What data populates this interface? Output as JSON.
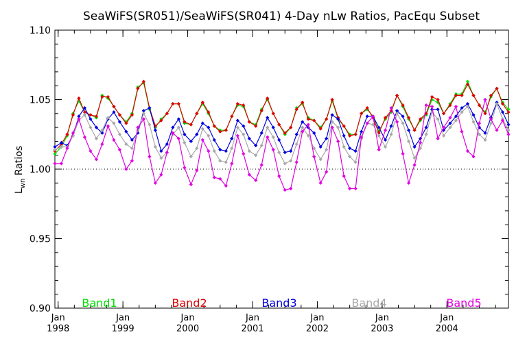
{
  "chart_data": {
    "type": "line",
    "title": "SeaWiFS(SR051)/SeaWiFS(SR041) 4-Day nLw Ratios, PacEqu Subset",
    "ylabel": "Lwn Ratios",
    "ylabel_main": "L",
    "ylabel_sub": "wn",
    "ylabel_tail": " Ratios",
    "xlabel": "",
    "xlim": [
      1997.95,
      2004.95
    ],
    "ylim": [
      0.9,
      1.1
    ],
    "y_ticks": [
      0.9,
      0.95,
      1.0,
      1.05,
      1.1
    ],
    "y_tick_labels": [
      "0.90",
      "0.95",
      "1.00",
      "1.05",
      "1.10"
    ],
    "x_ticks": [
      1998,
      1999,
      2000,
      2001,
      2002,
      2003,
      2004
    ],
    "x_tick_month": "Jan",
    "x_tick_years": [
      "1998",
      "1999",
      "2000",
      "2001",
      "2002",
      "2003",
      "2004"
    ],
    "reference_line": 1.0,
    "grid": false,
    "legend_placement": "bottom",
    "x": [
      1997.95,
      1998.05,
      1998.14,
      1998.23,
      1998.32,
      1998.41,
      1998.5,
      1998.59,
      1998.68,
      1998.77,
      1998.86,
      1998.95,
      1999.05,
      1999.14,
      1999.23,
      1999.32,
      1999.41,
      1999.5,
      1999.59,
      1999.68,
      1999.77,
      1999.86,
      1999.95,
      2000.05,
      2000.14,
      2000.23,
      2000.32,
      2000.41,
      2000.5,
      2000.59,
      2000.68,
      2000.77,
      2000.86,
      2000.95,
      2001.05,
      2001.14,
      2001.23,
      2001.32,
      2001.41,
      2001.5,
      2001.59,
      2001.68,
      2001.77,
      2001.86,
      2001.95,
      2002.05,
      2002.14,
      2002.23,
      2002.32,
      2002.41,
      2002.5,
      2002.59,
      2002.68,
      2002.77,
      2002.86,
      2002.95,
      2003.05,
      2003.14,
      2003.23,
      2003.32,
      2003.41,
      2003.5,
      2003.59,
      2003.68,
      2003.77,
      2003.86,
      2003.95,
      2004.05,
      2004.14,
      2004.23,
      2004.32,
      2004.41,
      2004.5,
      2004.59,
      2004.68,
      2004.77,
      2004.86,
      2004.95
    ],
    "series": [
      {
        "name": "Band1",
        "color": "#00e000",
        "values": [
          1.011,
          1.016,
          1.024,
          1.04,
          1.049,
          1.041,
          1.039,
          1.037,
          1.053,
          1.051,
          1.045,
          1.039,
          1.034,
          1.04,
          1.059,
          1.062,
          1.043,
          1.03,
          1.036,
          1.04,
          1.047,
          1.047,
          1.033,
          1.032,
          1.04,
          1.047,
          1.04,
          1.031,
          1.028,
          1.028,
          1.038,
          1.046,
          1.045,
          1.034,
          1.032,
          1.043,
          1.05,
          1.04,
          1.032,
          1.025,
          1.03,
          1.044,
          1.047,
          1.037,
          1.035,
          1.03,
          1.036,
          1.049,
          1.036,
          1.031,
          1.025,
          1.025,
          1.04,
          1.043,
          1.038,
          1.027,
          1.036,
          1.041,
          1.053,
          1.045,
          1.036,
          1.028,
          1.035,
          1.039,
          1.05,
          1.048,
          1.04,
          1.047,
          1.054,
          1.054,
          1.063,
          1.053,
          1.046,
          1.041,
          1.052,
          1.058,
          1.048,
          1.043
        ]
      },
      {
        "name": "Band2",
        "color": "#e00000",
        "values": [
          1.013,
          1.018,
          1.025,
          1.039,
          1.051,
          1.041,
          1.039,
          1.038,
          1.052,
          1.052,
          1.045,
          1.039,
          1.033,
          1.039,
          1.058,
          1.063,
          1.044,
          1.031,
          1.035,
          1.04,
          1.047,
          1.047,
          1.034,
          1.032,
          1.04,
          1.048,
          1.041,
          1.031,
          1.027,
          1.028,
          1.038,
          1.047,
          1.046,
          1.034,
          1.031,
          1.042,
          1.051,
          1.04,
          1.032,
          1.026,
          1.03,
          1.043,
          1.048,
          1.036,
          1.035,
          1.029,
          1.036,
          1.05,
          1.037,
          1.031,
          1.024,
          1.025,
          1.04,
          1.044,
          1.037,
          1.026,
          1.037,
          1.042,
          1.053,
          1.046,
          1.037,
          1.028,
          1.036,
          1.04,
          1.052,
          1.05,
          1.04,
          1.046,
          1.053,
          1.053,
          1.061,
          1.053,
          1.046,
          1.04,
          1.053,
          1.058,
          1.047,
          1.041
        ]
      },
      {
        "name": "Band3",
        "color": "#0000e0",
        "values": [
          1.016,
          1.019,
          1.017,
          1.024,
          1.038,
          1.044,
          1.036,
          1.03,
          1.026,
          1.036,
          1.041,
          1.034,
          1.027,
          1.021,
          1.026,
          1.042,
          1.044,
          1.028,
          1.013,
          1.018,
          1.03,
          1.036,
          1.025,
          1.02,
          1.025,
          1.033,
          1.03,
          1.021,
          1.014,
          1.013,
          1.022,
          1.035,
          1.031,
          1.022,
          1.017,
          1.026,
          1.037,
          1.03,
          1.021,
          1.012,
          1.013,
          1.025,
          1.034,
          1.03,
          1.026,
          1.016,
          1.022,
          1.039,
          1.036,
          1.024,
          1.015,
          1.013,
          1.027,
          1.038,
          1.038,
          1.03,
          1.021,
          1.031,
          1.042,
          1.038,
          1.028,
          1.016,
          1.022,
          1.03,
          1.043,
          1.043,
          1.028,
          1.033,
          1.038,
          1.044,
          1.047,
          1.039,
          1.03,
          1.026,
          1.037,
          1.048,
          1.041,
          1.032
        ]
      },
      {
        "name": "Band4",
        "color": "#a8a8a8",
        "values": [
          1.014,
          1.016,
          1.016,
          1.024,
          1.035,
          1.039,
          1.03,
          1.022,
          1.028,
          1.037,
          1.033,
          1.025,
          1.018,
          1.015,
          1.028,
          1.04,
          1.032,
          1.016,
          1.008,
          1.012,
          1.025,
          1.03,
          1.019,
          1.009,
          1.015,
          1.029,
          1.024,
          1.013,
          1.006,
          1.005,
          1.015,
          1.03,
          1.025,
          1.013,
          1.01,
          1.017,
          1.03,
          1.023,
          1.012,
          1.004,
          1.006,
          1.018,
          1.03,
          1.024,
          1.015,
          1.007,
          1.014,
          1.034,
          1.03,
          1.016,
          1.009,
          1.005,
          1.022,
          1.033,
          1.032,
          1.024,
          1.016,
          1.025,
          1.04,
          1.033,
          1.02,
          1.008,
          1.015,
          1.025,
          1.041,
          1.036,
          1.024,
          1.03,
          1.035,
          1.041,
          1.045,
          1.034,
          1.025,
          1.021,
          1.033,
          1.047,
          1.036,
          1.028
        ]
      },
      {
        "name": "Band5",
        "color": "#e000e0",
        "values": [
          1.004,
          1.004,
          1.015,
          1.026,
          1.036,
          1.023,
          1.013,
          1.007,
          1.018,
          1.031,
          1.021,
          1.014,
          1.0,
          1.006,
          1.03,
          1.036,
          1.009,
          0.99,
          0.996,
          1.012,
          1.026,
          1.022,
          1.001,
          0.989,
          0.999,
          1.021,
          1.013,
          0.994,
          0.993,
          0.988,
          1.004,
          1.024,
          1.011,
          0.996,
          0.992,
          1.003,
          1.023,
          1.014,
          0.995,
          0.985,
          0.986,
          1.005,
          1.027,
          1.032,
          1.009,
          0.99,
          0.998,
          1.03,
          1.02,
          0.995,
          0.986,
          0.986,
          1.023,
          1.033,
          1.038,
          1.014,
          1.028,
          1.044,
          1.034,
          1.011,
          0.99,
          1.003,
          1.019,
          1.046,
          1.045,
          1.022,
          1.03,
          1.037,
          1.045,
          1.027,
          1.013,
          1.009,
          1.033,
          1.05,
          1.036,
          1.028,
          1.035,
          1.025
        ]
      }
    ]
  }
}
